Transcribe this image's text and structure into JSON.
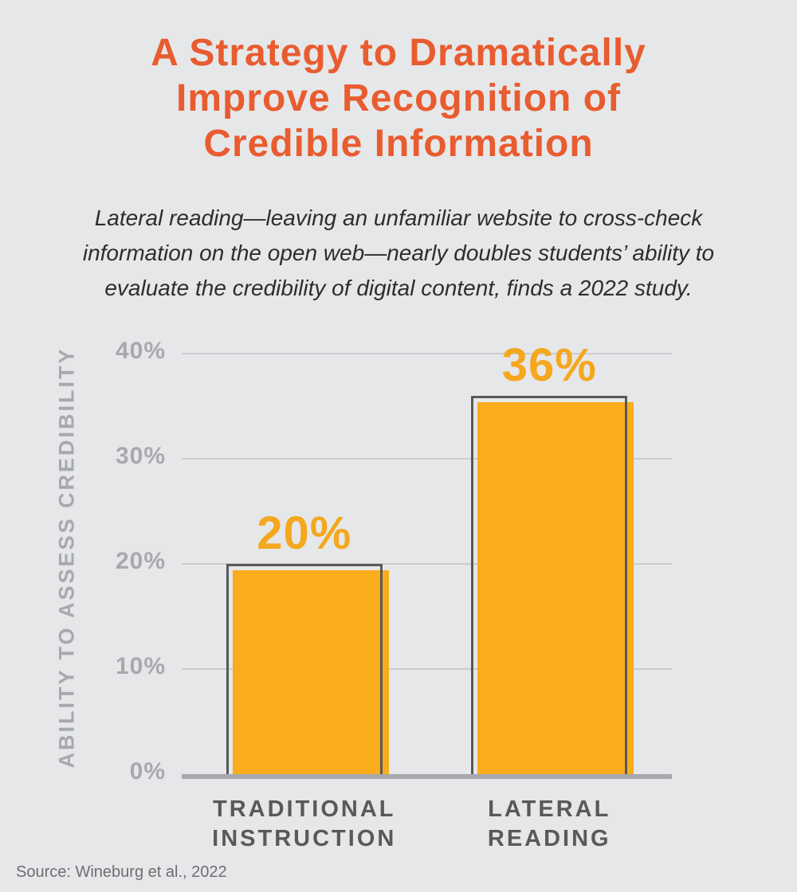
{
  "page": {
    "background": "#E6E7E8",
    "title_lines": [
      "A Strategy to Dramatically",
      "Improve Recognition of",
      "Credible Information"
    ],
    "title_color": "#E85C30",
    "subtitle_lines": [
      "Lateral reading—leaving an unfamiliar website to cross-check",
      "information on the open web—nearly doubles students’ ability to",
      "evaluate the credibility of digital content, finds a 2022 study."
    ],
    "subtitle_color": "#2D2D2D",
    "source": "Source: Wineburg et al., 2022"
  },
  "chart_data": {
    "type": "bar",
    "title": "A Strategy to Dramatically Improve Recognition of Credible Information",
    "subtitle": "Lateral reading—leaving an unfamiliar website to cross-check information on the open web—nearly doubles students’ ability to evaluate the credibility of digital content, finds a 2022 study.",
    "categories": [
      "TRADITIONAL\nINSTRUCTION",
      "LATERAL\nREADING"
    ],
    "values": [
      20,
      36
    ],
    "value_labels": [
      "20%",
      "36%"
    ],
    "xlabel": "",
    "ylabel": "ABILITY TO ASSESS CREDIBILITY",
    "ylim": [
      0,
      40
    ],
    "y_ticks": [
      {
        "value": 0,
        "label": "0%"
      },
      {
        "value": 10,
        "label": "10%"
      },
      {
        "value": 20,
        "label": "20%"
      },
      {
        "value": 30,
        "label": "30%"
      },
      {
        "value": 40,
        "label": "40%"
      }
    ],
    "grid": true,
    "legend": false,
    "source": "Source: Wineburg et al., 2022",
    "colors": {
      "bar_fill": "#F9AC1C",
      "bar_outline": "#58595B",
      "value_label": "#F5A71E",
      "tick_label": "#A7A9AC",
      "axis_label": "#A7A9AC",
      "category_label": "#58595B",
      "gridline": "#C9CBCD",
      "baseline": "#A7A9AC"
    }
  }
}
